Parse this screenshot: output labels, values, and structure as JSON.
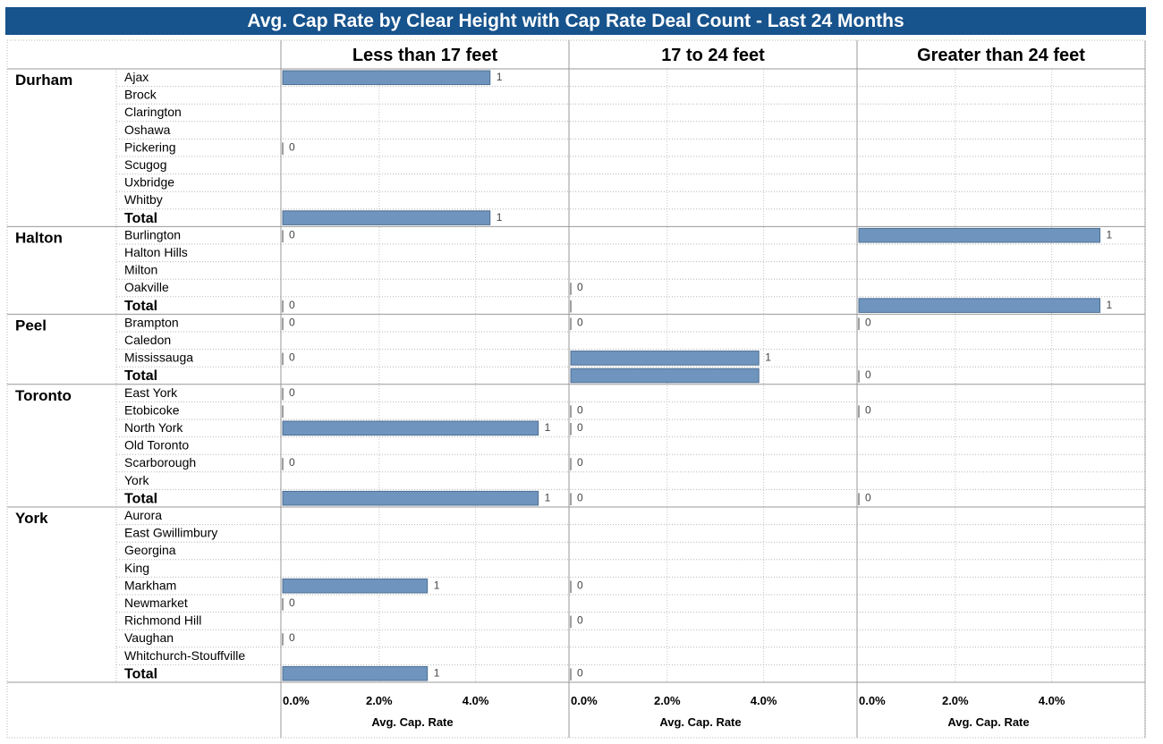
{
  "title": "Avg. Cap Rate by Clear Height with Cap Rate Deal Count - Last 24 Months",
  "colors": {
    "title_bg": "#17538c",
    "bar_fill": "#6f94bd",
    "bar_stroke": "#4d6f94"
  },
  "chart_data": {
    "type": "bar",
    "orientation": "horizontal",
    "title": "Avg. Cap Rate by Clear Height with Cap Rate Deal Count - Last 24 Months",
    "columns": [
      "Less than 17 feet",
      "17 to 24 feet",
      "Greater than 24 feet"
    ],
    "xlabel": "Avg. Cap. Rate",
    "xticks": [
      "0.0%",
      "2.0%",
      "4.0%"
    ],
    "xlim": [
      0,
      5.9
    ],
    "grid": true,
    "label_note": "number next to each bar = cap rate deal count",
    "regions": [
      {
        "name": "Durham",
        "rows": [
          {
            "label": "Ajax",
            "cells": [
              {
                "rate": 4.3,
                "count": "1"
              },
              null,
              null
            ]
          },
          {
            "label": "Brock",
            "cells": [
              null,
              null,
              null
            ]
          },
          {
            "label": "Clarington",
            "cells": [
              null,
              null,
              null
            ]
          },
          {
            "label": "Oshawa",
            "cells": [
              null,
              null,
              null
            ]
          },
          {
            "label": "Pickering",
            "cells": [
              {
                "rate": 0,
                "count": "0"
              },
              null,
              null
            ]
          },
          {
            "label": "Scugog",
            "cells": [
              null,
              null,
              null
            ]
          },
          {
            "label": "Uxbridge",
            "cells": [
              null,
              null,
              null
            ]
          },
          {
            "label": "Whitby",
            "cells": [
              null,
              null,
              null
            ]
          },
          {
            "label": "Total",
            "total": true,
            "cells": [
              {
                "rate": 4.3,
                "count": "1"
              },
              null,
              null
            ]
          }
        ]
      },
      {
        "name": "Halton",
        "rows": [
          {
            "label": "Burlington",
            "cells": [
              {
                "rate": 0,
                "count": "0"
              },
              null,
              {
                "rate": 5.0,
                "count": "1"
              }
            ]
          },
          {
            "label": "Halton Hills",
            "cells": [
              null,
              null,
              null
            ]
          },
          {
            "label": "Milton",
            "cells": [
              null,
              null,
              null
            ]
          },
          {
            "label": "Oakville",
            "cells": [
              null,
              {
                "rate": 0,
                "count": "0"
              },
              null
            ]
          },
          {
            "label": "Total",
            "total": true,
            "cells": [
              {
                "rate": 0,
                "count": "0"
              },
              {
                "rate": 0,
                "count": ""
              },
              {
                "rate": 5.0,
                "count": "1"
              }
            ]
          }
        ]
      },
      {
        "name": "Peel",
        "rows": [
          {
            "label": "Brampton",
            "cells": [
              {
                "rate": 0,
                "count": "0"
              },
              {
                "rate": 0,
                "count": "0"
              },
              {
                "rate": 0,
                "count": "0"
              }
            ]
          },
          {
            "label": "Caledon",
            "cells": [
              null,
              null,
              null
            ]
          },
          {
            "label": "Mississauga",
            "cells": [
              {
                "rate": 0,
                "count": "0"
              },
              {
                "rate": 3.9,
                "count": "1"
              },
              null
            ]
          },
          {
            "label": "Total",
            "total": true,
            "cells": [
              null,
              {
                "rate": 3.9,
                "count": ""
              },
              {
                "rate": 0,
                "count": "0"
              }
            ]
          }
        ]
      },
      {
        "name": "Toronto",
        "rows": [
          {
            "label": "East York",
            "cells": [
              {
                "rate": 0,
                "count": "0"
              },
              null,
              null
            ]
          },
          {
            "label": "Etobicoke",
            "cells": [
              {
                "rate": 0,
                "count": ""
              },
              {
                "rate": 0,
                "count": "0"
              },
              {
                "rate": 0,
                "count": "0"
              }
            ]
          },
          {
            "label": "North York",
            "cells": [
              {
                "rate": 5.3,
                "count": "1"
              },
              {
                "rate": 0,
                "count": "0"
              },
              null
            ]
          },
          {
            "label": "Old Toronto",
            "cells": [
              null,
              null,
              null
            ]
          },
          {
            "label": "Scarborough",
            "cells": [
              {
                "rate": 0,
                "count": "0"
              },
              {
                "rate": 0,
                "count": "0"
              },
              null
            ]
          },
          {
            "label": "York",
            "cells": [
              null,
              null,
              null
            ]
          },
          {
            "label": "Total",
            "total": true,
            "cells": [
              {
                "rate": 5.3,
                "count": "1"
              },
              {
                "rate": 0,
                "count": "0"
              },
              {
                "rate": 0,
                "count": "0"
              }
            ]
          }
        ]
      },
      {
        "name": "York",
        "rows": [
          {
            "label": "Aurora",
            "cells": [
              null,
              null,
              null
            ]
          },
          {
            "label": "East Gwillimbury",
            "cells": [
              null,
              null,
              null
            ]
          },
          {
            "label": "Georgina",
            "cells": [
              null,
              null,
              null
            ]
          },
          {
            "label": "King",
            "cells": [
              null,
              null,
              null
            ]
          },
          {
            "label": "Markham",
            "cells": [
              {
                "rate": 3.0,
                "count": "1"
              },
              {
                "rate": 0,
                "count": "0"
              },
              null
            ]
          },
          {
            "label": "Newmarket",
            "cells": [
              {
                "rate": 0,
                "count": "0"
              },
              null,
              null
            ]
          },
          {
            "label": "Richmond Hill",
            "cells": [
              null,
              {
                "rate": 0,
                "count": "0"
              },
              null
            ]
          },
          {
            "label": "Vaughan",
            "cells": [
              {
                "rate": 0,
                "count": "0"
              },
              null,
              null
            ]
          },
          {
            "label": "Whitchurch-Stouffville",
            "cells": [
              null,
              null,
              null
            ]
          },
          {
            "label": "Total",
            "total": true,
            "cells": [
              {
                "rate": 3.0,
                "count": "1"
              },
              {
                "rate": 0,
                "count": "0"
              },
              null
            ]
          }
        ]
      }
    ]
  }
}
